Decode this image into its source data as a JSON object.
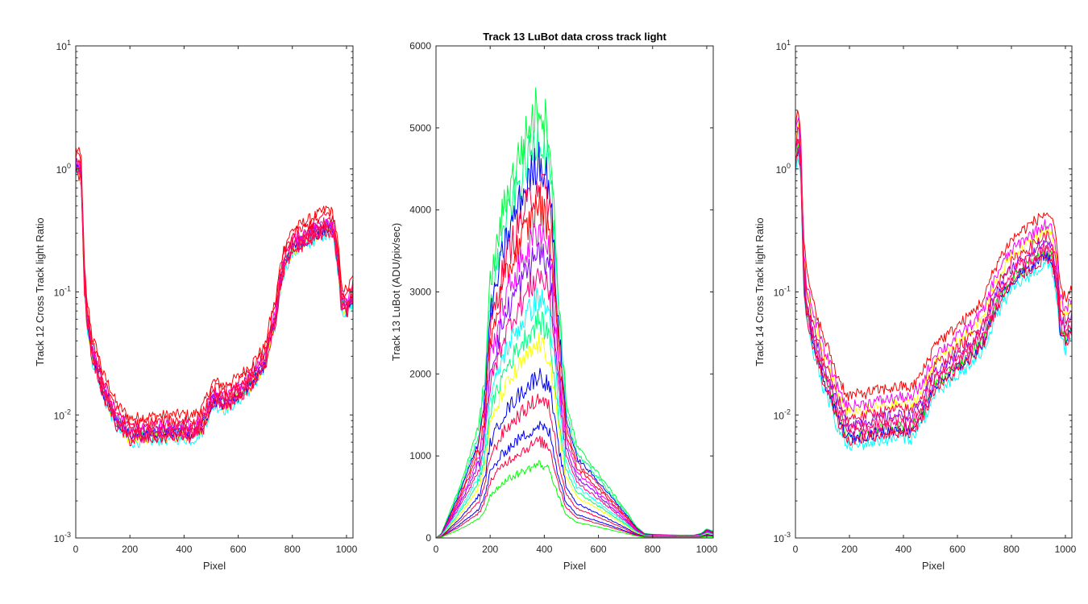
{
  "chart_data": [
    {
      "type": "line",
      "title": "",
      "xlabel": "Pixel",
      "ylabel": "Track 12  Cross Track light Ratio",
      "yscale": "log",
      "xlim": [
        0,
        1024
      ],
      "ylim": [
        0.001,
        10
      ],
      "xticks": [
        "0",
        "200",
        "400",
        "600",
        "800",
        "1000"
      ],
      "yticks": [
        "10^-3",
        "10^-2",
        "10^-1",
        "10^0",
        "10^1"
      ],
      "profile": {
        "x": [
          0,
          10,
          20,
          25,
          30,
          40,
          60,
          100,
          150,
          200,
          300,
          400,
          430,
          470,
          510,
          550,
          600,
          650,
          700,
          740,
          770,
          800,
          850,
          900,
          930,
          950,
          980,
          1000,
          1024
        ],
        "y": [
          1.0,
          0.95,
          0.85,
          0.35,
          0.12,
          0.06,
          0.03,
          0.015,
          0.0085,
          0.0065,
          0.0068,
          0.007,
          0.0068,
          0.008,
          0.013,
          0.012,
          0.014,
          0.018,
          0.025,
          0.06,
          0.16,
          0.22,
          0.26,
          0.3,
          0.33,
          0.3,
          0.08,
          0.07,
          0.09
        ]
      },
      "series": [
        {
          "scale": 1.45,
          "color": "#ff0000"
        },
        {
          "scale": 0.92,
          "color": "#00ffff"
        },
        {
          "scale": 1.05,
          "color": "#00ff80"
        },
        {
          "scale": 0.98,
          "color": "#ffff00"
        },
        {
          "scale": 1.02,
          "color": "#0000ff"
        },
        {
          "scale": 1.1,
          "color": "#8000ff"
        },
        {
          "scale": 1.2,
          "color": "#ff00ff"
        },
        {
          "scale": 1.0,
          "color": "#ff0080"
        },
        {
          "scale": 1.15,
          "color": "#ff0040"
        },
        {
          "scale": 0.95,
          "color": "#ff0040"
        },
        {
          "scale": 1.3,
          "color": "#ff0020"
        },
        {
          "scale": 1.08,
          "color": "#ff1060"
        }
      ]
    },
    {
      "type": "line",
      "title": "Track 13 LuBot  data cross track light",
      "xlabel": "Pixel",
      "ylabel": "Track 13 LuBot (ADU/pix/sec)",
      "yscale": "linear",
      "xlim": [
        0,
        1024
      ],
      "ylim": [
        0,
        6000
      ],
      "xticks": [
        "0",
        "200",
        "400",
        "600",
        "800",
        "1000"
      ],
      "yticks": [
        "0",
        "1000",
        "2000",
        "3000",
        "4000",
        "5000",
        "6000"
      ],
      "profile": {
        "x": [
          0,
          20,
          40,
          80,
          120,
          160,
          180,
          200,
          250,
          300,
          350,
          380,
          420,
          450,
          480,
          520,
          560,
          600,
          650,
          700,
          740,
          770,
          800,
          900,
          950,
          980,
          1000,
          1024
        ],
        "y": [
          0.0,
          0.01,
          0.04,
          0.1,
          0.17,
          0.25,
          0.35,
          0.55,
          0.72,
          0.82,
          0.9,
          0.95,
          0.88,
          0.55,
          0.3,
          0.2,
          0.17,
          0.14,
          0.1,
          0.06,
          0.025,
          0.01,
          0.008,
          0.006,
          0.006,
          0.01,
          0.02,
          0.015
        ]
      },
      "series": [
        {
          "scale": 5600,
          "color": "#00ff40"
        },
        {
          "scale": 5200,
          "color": "#00ff80"
        },
        {
          "scale": 4900,
          "color": "#0000ff"
        },
        {
          "scale": 4600,
          "color": "#ff0040"
        },
        {
          "scale": 4300,
          "color": "#ff0000"
        },
        {
          "scale": 4000,
          "color": "#ff00ff"
        },
        {
          "scale": 3700,
          "color": "#8000ff"
        },
        {
          "scale": 3400,
          "color": "#ff0080"
        },
        {
          "scale": 3100,
          "color": "#00ffff"
        },
        {
          "scale": 2800,
          "color": "#00ff80"
        },
        {
          "scale": 2500,
          "color": "#ffff00"
        },
        {
          "scale": 2100,
          "color": "#0000ff"
        },
        {
          "scale": 1800,
          "color": "#ff0040"
        },
        {
          "scale": 1450,
          "color": "#0000ff"
        },
        {
          "scale": 1250,
          "color": "#ff0040"
        },
        {
          "scale": 950,
          "color": "#00ff00"
        }
      ]
    },
    {
      "type": "line",
      "title": "",
      "xlabel": "Pixel",
      "ylabel": "Track 14  Cross Track light Ratio",
      "yscale": "log",
      "xlim": [
        0,
        1024
      ],
      "ylim": [
        0.001,
        10
      ],
      "xticks": [
        "0",
        "200",
        "400",
        "600",
        "800",
        "1000"
      ],
      "yticks": [
        "10^-3",
        "10^-2",
        "10^-1",
        "10^0",
        "10^1"
      ],
      "profile": {
        "x": [
          0,
          10,
          20,
          25,
          30,
          40,
          60,
          100,
          150,
          190,
          250,
          300,
          400,
          430,
          470,
          500,
          520,
          560,
          600,
          650,
          700,
          750,
          800,
          850,
          900,
          930,
          950,
          980,
          1000,
          1024
        ],
        "y": [
          1.0,
          1.5,
          0.9,
          0.3,
          0.12,
          0.07,
          0.04,
          0.02,
          0.01,
          0.0065,
          0.0068,
          0.0072,
          0.0078,
          0.0075,
          0.01,
          0.014,
          0.018,
          0.02,
          0.024,
          0.03,
          0.04,
          0.08,
          0.12,
          0.15,
          0.18,
          0.2,
          0.18,
          0.05,
          0.04,
          0.05
        ]
      },
      "series": [
        {
          "scale": 2.2,
          "color": "#ff0000"
        },
        {
          "scale": 0.85,
          "color": "#00ffff"
        },
        {
          "scale": 1.05,
          "color": "#00ff00"
        },
        {
          "scale": 1.6,
          "color": "#ffff00"
        },
        {
          "scale": 1.0,
          "color": "#0000ff"
        },
        {
          "scale": 1.3,
          "color": "#8000ff"
        },
        {
          "scale": 1.8,
          "color": "#ff00ff"
        },
        {
          "scale": 1.1,
          "color": "#ff0080"
        },
        {
          "scale": 1.45,
          "color": "#ff0040"
        },
        {
          "scale": 0.95,
          "color": "#ff0040"
        },
        {
          "scale": 1.2,
          "color": "#ff1060"
        }
      ]
    }
  ]
}
